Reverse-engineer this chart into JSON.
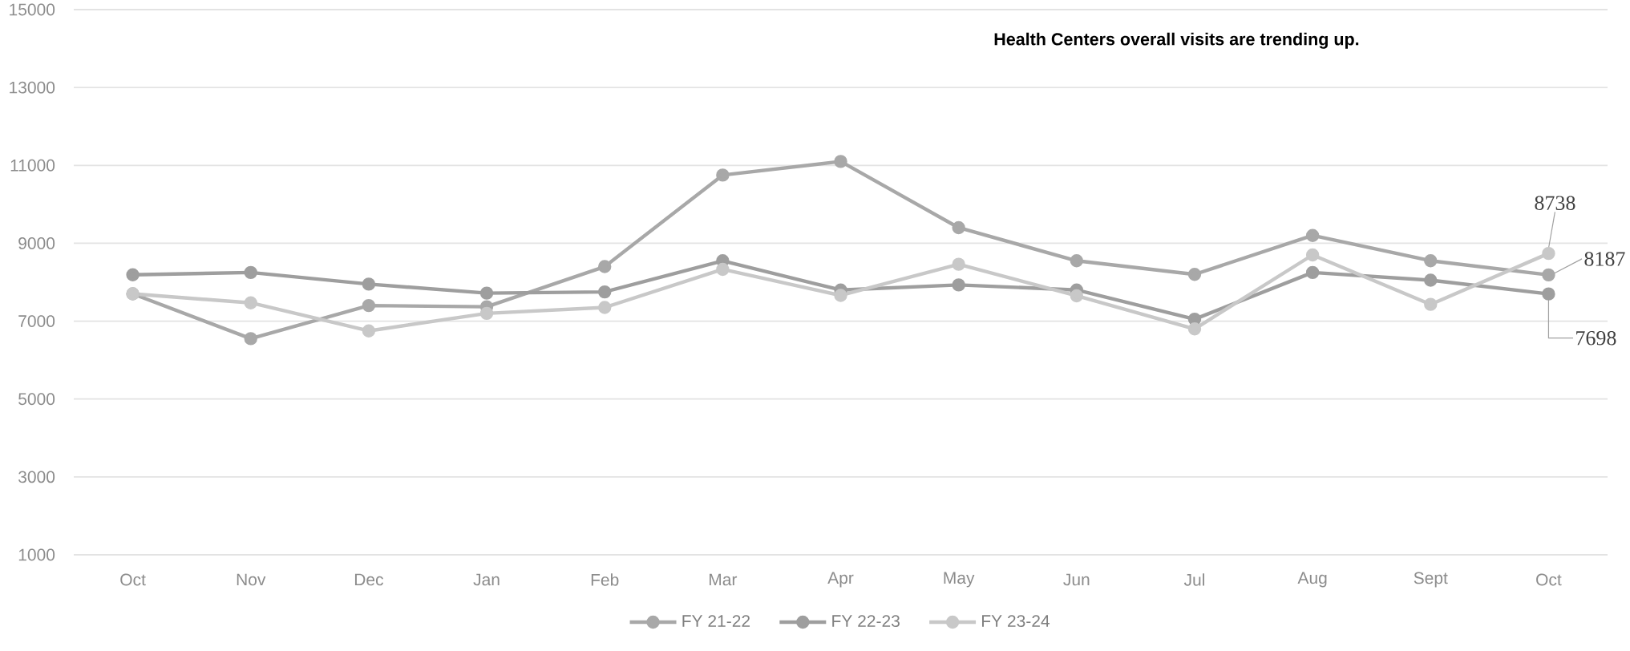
{
  "chart_data": {
    "type": "line",
    "categories": [
      "Oct",
      "Nov",
      "Dec",
      "Jan",
      "Feb",
      "Mar",
      "Apr",
      "May",
      "Jun",
      "Jul",
      "Aug",
      "Sept",
      "Oct"
    ],
    "series": [
      {
        "name": "FY 21-22",
        "color": "#a8a8a8",
        "values": [
          7700,
          6550,
          7400,
          7370,
          8400,
          10750,
          11100,
          9400,
          8550,
          8200,
          9200,
          8550,
          8187
        ],
        "value_labels": [
          null,
          null,
          null,
          null,
          null,
          null,
          null,
          null,
          null,
          null,
          null,
          null,
          "8187"
        ]
      },
      {
        "name": "FY 22-23",
        "color": "#9e9e9e",
        "values": [
          8190,
          8250,
          7950,
          7720,
          7750,
          8550,
          7800,
          7930,
          7800,
          7050,
          8250,
          8050,
          7698
        ],
        "value_labels": [
          null,
          null,
          null,
          null,
          null,
          null,
          null,
          null,
          null,
          null,
          null,
          null,
          "7698"
        ]
      },
      {
        "name": "FY 23-24",
        "color": "#c8c8c8",
        "values": [
          7700,
          7470,
          6750,
          7200,
          7350,
          8330,
          7660,
          8460,
          7650,
          6800,
          8700,
          7430,
          8738
        ],
        "value_labels": [
          null,
          null,
          null,
          null,
          null,
          null,
          null,
          null,
          null,
          null,
          null,
          null,
          "8738"
        ]
      }
    ],
    "ylim": [
      1000,
      15000
    ],
    "yticks": [
      1000,
      3000,
      5000,
      7000,
      9000,
      11000,
      13000,
      15000
    ],
    "grid": "y",
    "legend": "bottom",
    "marker": "circle",
    "line_style": "solid",
    "annotations": [
      "Health Centers overall visits are trending up."
    ]
  }
}
